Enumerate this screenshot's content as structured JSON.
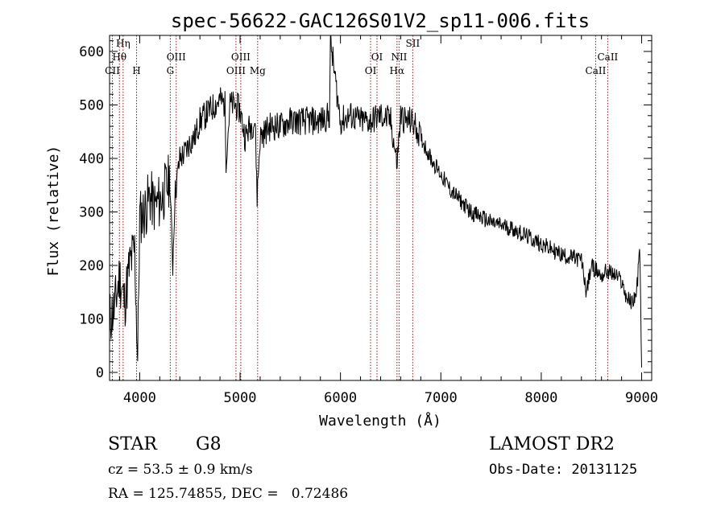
{
  "chart_data": {
    "type": "line",
    "title": "spec-56622-GAC126S01V2_sp11-006.fits",
    "xlabel": "Wavelength (Å)",
    "ylabel": "Flux (relative)",
    "xlim": [
      3700,
      9100
    ],
    "ylim": [
      -15,
      630
    ],
    "xticks": [
      4000,
      5000,
      6000,
      7000,
      8000,
      9000
    ],
    "yticks": [
      0,
      100,
      200,
      300,
      400,
      500,
      600
    ],
    "grid": false,
    "line_color": "#000000",
    "marker_color": "#8b1a1a",
    "series": [
      {
        "x": [
          3700,
          3750,
          3800,
          3850,
          3900,
          3950,
          3980,
          4000,
          4050,
          4100,
          4150,
          4200,
          4250,
          4300,
          4330,
          4350,
          4400,
          4450,
          4500,
          4550,
          4600,
          4650,
          4700,
          4750,
          4800,
          4850,
          4860,
          4900,
          4950,
          5000,
          5050,
          5100,
          5150,
          5170,
          5200,
          5250,
          5300,
          5400,
          5500,
          5600,
          5700,
          5800,
          5890,
          5900,
          6000,
          6100,
          6200,
          6300,
          6400,
          6500,
          6563,
          6600,
          6650,
          6700,
          6750,
          6800,
          6900,
          7000,
          7100,
          7200,
          7300,
          7400,
          7500,
          7600,
          7700,
          7800,
          7900,
          8000,
          8100,
          8200,
          8300,
          8400,
          8450,
          8500,
          8550,
          8600,
          8650,
          8700,
          8750,
          8800,
          8850,
          8900,
          8950,
          8980,
          9000
        ],
        "y": [
          100,
          120,
          180,
          130,
          200,
          230,
          20,
          290,
          300,
          330,
          310,
          320,
          340,
          360,
          200,
          330,
          400,
          410,
          430,
          440,
          470,
          480,
          490,
          500,
          510,
          500,
          400,
          500,
          500,
          490,
          440,
          460,
          470,
          330,
          440,
          450,
          460,
          460,
          470,
          470,
          470,
          470,
          480,
          620,
          470,
          480,
          470,
          470,
          480,
          470,
          390,
          480,
          470,
          470,
          460,
          440,
          400,
          370,
          340,
          320,
          300,
          290,
          280,
          275,
          270,
          260,
          250,
          240,
          230,
          220,
          215,
          210,
          150,
          200,
          190,
          180,
          190,
          185,
          180,
          170,
          140,
          130,
          150,
          230,
          20
        ]
      }
    ],
    "lines": [
      {
        "label": "CII",
        "x": 3728
      },
      {
        "label": "Hθ",
        "x": 3798
      },
      {
        "label": "Hη",
        "x": 3835
      },
      {
        "label": "H",
        "x": 3969
      },
      {
        "label": "G",
        "x": 4305
      },
      {
        "label": "OIII",
        "x": 4364
      },
      {
        "label": "OIII",
        "x": 4959
      },
      {
        "label": "OIII",
        "x": 5007
      },
      {
        "label": "Mg",
        "x": 5175
      },
      {
        "label": "OI",
        "x": 6300
      },
      {
        "label": "OI",
        "x": 6364
      },
      {
        "label": "Hα",
        "x": 6563
      },
      {
        "label": "NII",
        "x": 6584
      },
      {
        "label": "SII",
        "x": 6720
      },
      {
        "label": "CaII",
        "x": 8542
      },
      {
        "label": "CaII",
        "x": 8662
      }
    ]
  },
  "info": {
    "object_class": "STAR",
    "subclass": "G8",
    "survey": "LAMOST DR2",
    "redshift_line": "cz = 53.5 ± 0.9 km/s",
    "obs_date_line": "Obs-Date: 20131125",
    "coords_line": "RA = 125.74855, DEC =   0.72486"
  }
}
